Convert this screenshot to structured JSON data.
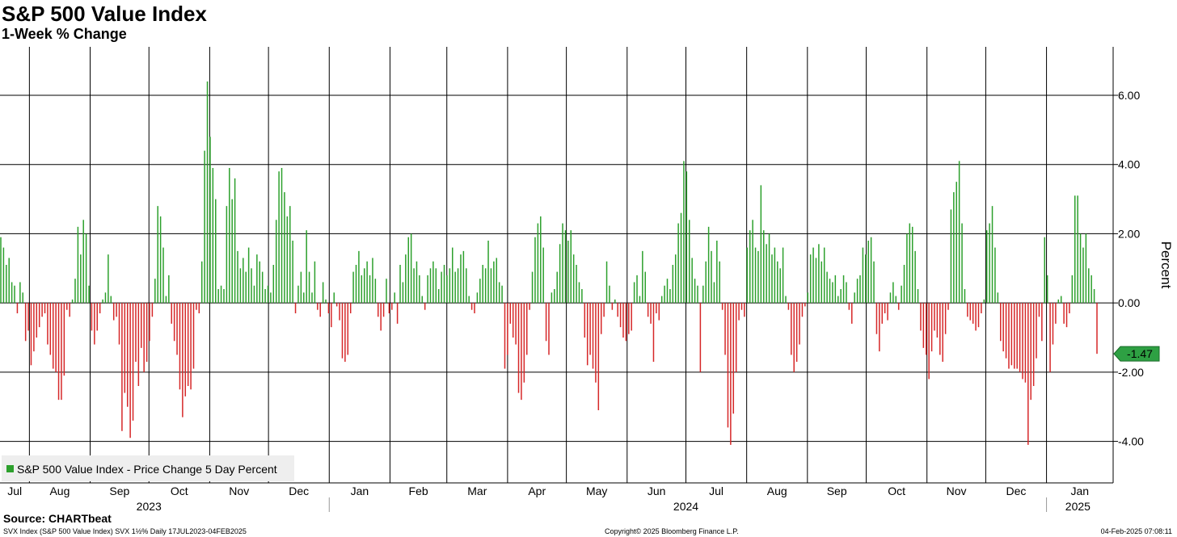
{
  "title": "S&P 500 Value Index",
  "subtitle": "1-Week % Change",
  "source": "Source: CHARTbeat",
  "footer_left": "SVX Index (S&P 500 Value Index) SVX 1½%  Daily 17JUL2023-04FEB2025",
  "footer_center": "Copyright© 2025 Bloomberg Finance L.P.",
  "footer_right": "04-Feb-2025 07:08:11",
  "colors": {
    "positive": "#2ca02c",
    "negative": "#d62728",
    "last_value_bg": "#2ea043",
    "legend_bg": "#eeeeee"
  },
  "chart_data": {
    "type": "bar",
    "title": "S&P 500 Value Index",
    "subtitle": "1-Week % Change",
    "ylabel": "Percent",
    "ylim": [
      -5.2,
      7.4
    ],
    "yticks": [
      6,
      4,
      2,
      0,
      -2,
      -4
    ],
    "ytick_labels": [
      "6.00",
      "4.00",
      "2.00",
      "0.00",
      "-2.00",
      "-4.00"
    ],
    "grid": true,
    "legend": {
      "label": "S&P 500 Value Index - Price Change 5 Day Percent",
      "position": "bottom-left"
    },
    "last_value_label": "-1.47",
    "x_start": "2023-07-17",
    "x_end": "2025-02-04",
    "months": [
      {
        "label": "Jul",
        "date": "2023-07-17"
      },
      {
        "label": "Aug",
        "date": "2023-08-01"
      },
      {
        "label": "Sep",
        "date": "2023-09-01"
      },
      {
        "label": "Oct",
        "date": "2023-10-01"
      },
      {
        "label": "Nov",
        "date": "2023-11-01"
      },
      {
        "label": "Dec",
        "date": "2023-12-01"
      },
      {
        "label": "Jan",
        "date": "2024-01-01"
      },
      {
        "label": "Feb",
        "date": "2024-02-01"
      },
      {
        "label": "Mar",
        "date": "2024-03-01"
      },
      {
        "label": "Apr",
        "date": "2024-04-01"
      },
      {
        "label": "May",
        "date": "2024-05-01"
      },
      {
        "label": "Jun",
        "date": "2024-06-01"
      },
      {
        "label": "Jul",
        "date": "2024-07-01"
      },
      {
        "label": "Aug",
        "date": "2024-08-01"
      },
      {
        "label": "Sep",
        "date": "2024-09-01"
      },
      {
        "label": "Oct",
        "date": "2024-10-01"
      },
      {
        "label": "Nov",
        "date": "2024-11-01"
      },
      {
        "label": "Dec",
        "date": "2024-12-01"
      },
      {
        "label": "Jan",
        "date": "2025-01-01"
      }
    ],
    "years": [
      {
        "label": "2023",
        "date": "2023-10-01"
      },
      {
        "label": "2024",
        "date": "2024-07-01"
      },
      {
        "label": "2025",
        "date": "2025-01-17"
      }
    ],
    "year_boundaries": [
      "2024-01-01",
      "2025-01-01"
    ],
    "series": [
      {
        "values": [
          1.9,
          1.6,
          1.1,
          1.3,
          0.6,
          0.5,
          -0.3,
          0.6,
          0.3,
          -1.1,
          -0.8,
          -1.8,
          -1.4,
          -1.0,
          -0.7,
          -0.4,
          -0.3,
          -1.2,
          -1.5,
          -1.9,
          -2.0,
          -2.8,
          -2.8,
          -2.1,
          -0.2,
          -0.4,
          0.1,
          0.7,
          2.2,
          1.4,
          2.4,
          2.0,
          0.5,
          -0.8,
          -1.2,
          -0.8,
          -0.3,
          0.1,
          0.3,
          1.4,
          0.2,
          -0.5,
          -0.4,
          -1.2,
          -3.7,
          -2.6,
          -3.0,
          -3.9,
          -3.4,
          -1.7,
          -2.4,
          -1.3,
          -2.0,
          -1.7,
          -1.1,
          -0.4,
          0.7,
          2.8,
          2.5,
          1.6,
          0.2,
          0.8,
          -0.6,
          -1.1,
          -1.5,
          -2.5,
          -3.3,
          -2.7,
          -2.4,
          -2.5,
          -1.9,
          -0.2,
          -0.3,
          1.2,
          4.4,
          6.4,
          4.8,
          3.9,
          3.0,
          0.4,
          0.5,
          0.4,
          2.8,
          3.9,
          3.0,
          3.6,
          1.5,
          1.0,
          1.3,
          0.9,
          1.6,
          1.0,
          0.5,
          1.4,
          1.2,
          0.9,
          0.4,
          0.5,
          0.3,
          1.1,
          2.4,
          3.8,
          3.9,
          3.2,
          2.5,
          2.8,
          1.8,
          -0.3,
          0.5,
          0.9,
          0.3,
          2.1,
          0.9,
          0.3,
          1.2,
          -0.2,
          -0.4,
          0.6,
          0.1,
          -0.3,
          -0.7,
          0.3,
          -0.1,
          -0.5,
          -1.6,
          -1.7,
          -1.5,
          -0.3,
          0.9,
          1.1,
          1.5,
          0.8,
          1.0,
          1.2,
          0.8,
          1.3,
          0.7,
          -0.4,
          -0.8,
          -0.4,
          0.7,
          -0.3,
          -0.2,
          0.3,
          -0.6,
          1.1,
          0.6,
          1.4,
          1.9,
          2.0,
          1.0,
          1.2,
          0.8,
          0.2,
          -0.2,
          0.8,
          1.0,
          1.2,
          1.0,
          0.4,
          0.9,
          1.1,
          0.8,
          1.0,
          1.6,
          0.9,
          1.0,
          1.4,
          1.5,
          1.0,
          0.2,
          -0.2,
          -0.3,
          0.3,
          0.7,
          1.1,
          1.0,
          1.8,
          1.0,
          1.2,
          1.3,
          0.6,
          0.5,
          -1.9,
          -1.5,
          -0.6,
          -1.0,
          -1.2,
          -2.6,
          -2.8,
          -2.3,
          -1.5,
          -0.2,
          0.9,
          1.9,
          2.3,
          2.5,
          1.6,
          -1.1,
          -1.5,
          0.3,
          0.4,
          0.9,
          1.7,
          2.3,
          2.1,
          1.8,
          2.1,
          1.4,
          1.1,
          0.6,
          0.4,
          -1.0,
          -1.8,
          -1.5,
          -1.9,
          -2.3,
          -3.1,
          -0.9,
          -0.4,
          1.2,
          0.5,
          -0.2,
          0.1,
          -0.4,
          -0.7,
          -1.0,
          -1.1,
          -0.9,
          -0.8,
          0.6,
          0.8,
          0.2,
          1.5,
          0.9,
          -0.4,
          -0.6,
          -1.7,
          -0.3,
          -0.5,
          0.2,
          0.5,
          0.7,
          0.4,
          1.1,
          1.4,
          2.3,
          2.6,
          4.1,
          3.8,
          2.4,
          1.3,
          0.7,
          0.5,
          -2.0,
          0.5,
          1.2,
          2.2,
          1.5,
          0.6,
          1.8,
          1.2,
          -0.2,
          -1.5,
          -3.6,
          -4.1,
          -3.2,
          -2.0,
          -0.5,
          -0.2,
          -0.4,
          1.6,
          2.1,
          2.4,
          1.6,
          1.5,
          3.4,
          2.1,
          1.7,
          2.0,
          1.4,
          1.6,
          1.2,
          1.0,
          1.6,
          0.2,
          -0.2,
          -1.5,
          -2.0,
          -1.7,
          -1.2,
          -0.4,
          -0.1,
          0.3,
          1.4,
          1.6,
          1.3,
          1.7,
          1.2,
          1.6,
          0.9,
          0.7,
          0.6,
          0.8,
          0.2,
          0.4,
          0.8,
          0.6,
          -0.2,
          -0.6,
          0.3,
          0.7,
          0.8,
          1.6,
          1.4,
          1.8,
          1.9,
          1.2,
          -0.9,
          -1.4,
          -0.6,
          -0.3,
          -0.5,
          0.3,
          0.6,
          0.2,
          -0.2,
          0.5,
          1.1,
          2.0,
          2.3,
          2.2,
          1.5,
          0.4,
          -0.8,
          -1.3,
          -1.5,
          -2.2,
          -1.4,
          -0.8,
          -1.0,
          -1.5,
          -1.7,
          -0.9,
          -0.2,
          2.7,
          3.2,
          3.5,
          4.1,
          2.3,
          0.4,
          -0.4,
          -0.5,
          -0.6,
          -0.8,
          -0.7,
          -0.3,
          0.1,
          2.1,
          2.3,
          2.8,
          1.6,
          0.3,
          -1.1,
          -1.4,
          -1.6,
          -1.9,
          -1.8,
          -1.9,
          -1.9,
          -2.0,
          -2.2,
          -2.3,
          -4.1,
          -2.8,
          -2.4,
          -1.6,
          -0.4,
          -1.1,
          1.9,
          0.8,
          -2.0,
          -1.2,
          -0.6,
          0.1,
          0.2,
          -0.6,
          -0.7,
          -0.3,
          0.8,
          3.1,
          3.1,
          2.0,
          1.6,
          2.0,
          1.0,
          0.8,
          0.4,
          -1.47
        ]
      }
    ]
  }
}
